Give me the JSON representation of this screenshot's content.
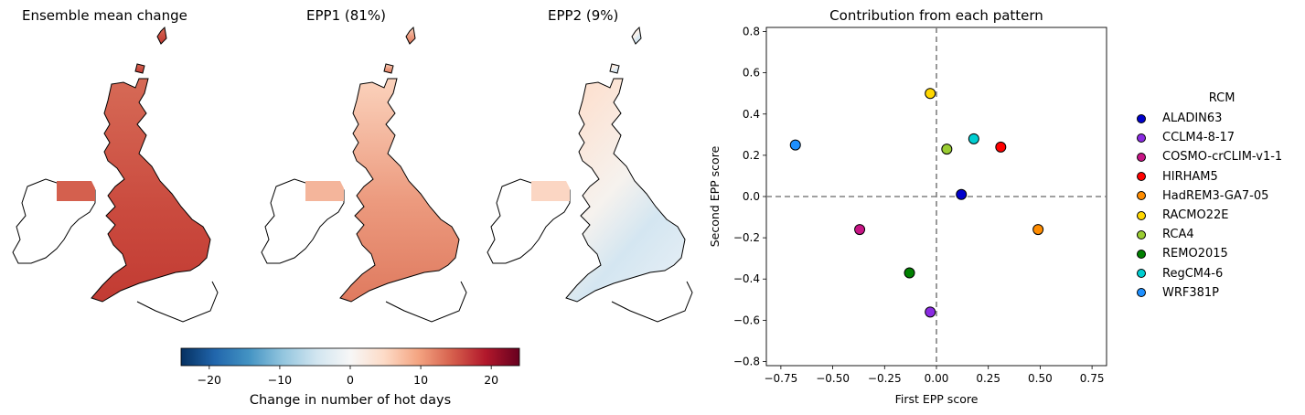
{
  "maps": [
    {
      "title": "Ensemble mean change"
    },
    {
      "title": "EPP1 (81%)"
    },
    {
      "title": "EPP2 (9%)"
    }
  ],
  "colorbar": {
    "label": "Change in number of hot days",
    "ticks": [
      "−20",
      "−10",
      "0",
      "10",
      "20"
    ],
    "tick_values": [
      -20,
      -10,
      0,
      10,
      20
    ],
    "range": [
      -24,
      24
    ],
    "colormap": "RdBu_r"
  },
  "chart_data": {
    "type": "scatter",
    "title": "Contribution from each pattern",
    "xlabel": "First EPP score",
    "ylabel": "Second EPP score",
    "xlim": [
      -0.82,
      0.82
    ],
    "ylim": [
      -0.82,
      0.82
    ],
    "xticks": [
      -0.75,
      -0.5,
      -0.25,
      0.0,
      0.25,
      0.5,
      0.75
    ],
    "xtick_labels": [
      "−0.75",
      "−0.50",
      "−0.25",
      "0.00",
      "0.25",
      "0.50",
      "0.75"
    ],
    "yticks": [
      -0.8,
      -0.6,
      -0.4,
      -0.2,
      0.0,
      0.2,
      0.4,
      0.6,
      0.8
    ],
    "ytick_labels": [
      "−0.8",
      "−0.6",
      "−0.4",
      "−0.2",
      "0.0",
      "0.2",
      "0.4",
      "0.6",
      "0.8"
    ],
    "reference_lines": {
      "x": 0,
      "y": 0,
      "style": "dashed"
    },
    "legend_title": "RCM",
    "legend_position": "right",
    "points": [
      {
        "name": "ALADIN63",
        "x": 0.12,
        "y": 0.01,
        "color": "#0000cc"
      },
      {
        "name": "CCLM4-8-17",
        "x": -0.03,
        "y": -0.56,
        "color": "#8a2be2"
      },
      {
        "name": "COSMO-crCLIM-v1-1",
        "x": -0.37,
        "y": -0.16,
        "color": "#c71585"
      },
      {
        "name": "HIRHAM5",
        "x": 0.31,
        "y": 0.24,
        "color": "#ff0000"
      },
      {
        "name": "HadREM3-GA7-05",
        "x": 0.49,
        "y": -0.16,
        "color": "#ff8c00"
      },
      {
        "name": "RACMO22E",
        "x": -0.03,
        "y": 0.5,
        "color": "#ffd700"
      },
      {
        "name": "RCA4",
        "x": 0.05,
        "y": 0.23,
        "color": "#9acd32"
      },
      {
        "name": "REMO2015",
        "x": -0.13,
        "y": -0.37,
        "color": "#008000"
      },
      {
        "name": "RegCM4-6",
        "x": 0.18,
        "y": 0.28,
        "color": "#00ced1"
      },
      {
        "name": "WRF381P",
        "x": -0.68,
        "y": 0.25,
        "color": "#1e90ff"
      }
    ]
  }
}
